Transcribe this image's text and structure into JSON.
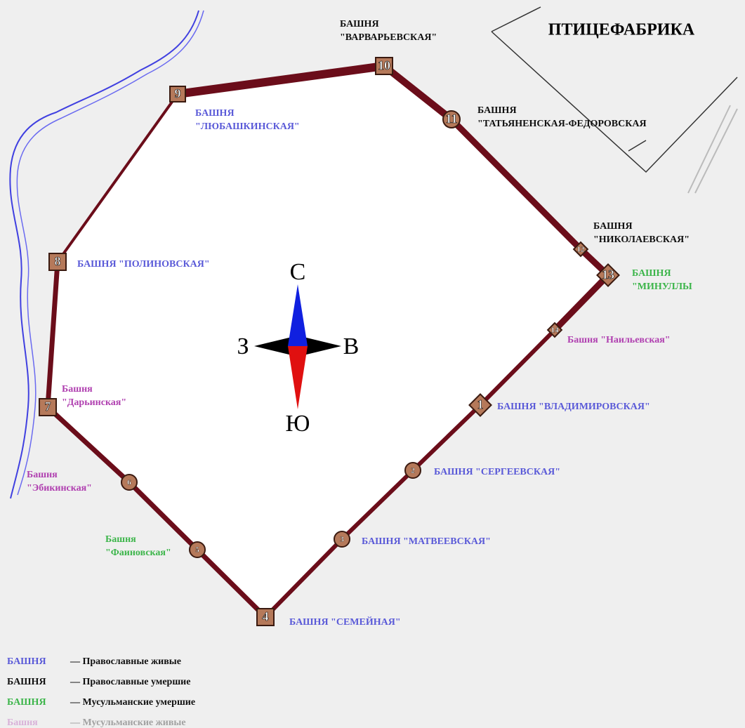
{
  "title": "ПТИЦЕФАБРИКА",
  "compass": {
    "north": "С",
    "south": "Ю",
    "west": "З",
    "east": "В"
  },
  "towers": [
    {
      "number": "1",
      "shape": "diamond",
      "color": "#5a5ad8",
      "label": [
        "БАШНЯ \"ВЛАДИМИРОВСКАЯ\""
      ]
    },
    {
      "number": "2",
      "shape": "circle",
      "color": "#5a5ad8",
      "label": [
        "БАШНЯ \"СЕРГЕЕВСКАЯ\""
      ]
    },
    {
      "number": "3",
      "shape": "circle",
      "color": "#5a5ad8",
      "label": [
        "БАШНЯ \"МАТВЕЕВСКАЯ\""
      ]
    },
    {
      "number": "4",
      "shape": "square",
      "color": "#5a5ad8",
      "label": [
        "БАШНЯ \"СЕМЕЙНАЯ\""
      ]
    },
    {
      "number": "5",
      "shape": "circle",
      "color": "#3cb54a",
      "label": [
        "Башня",
        "\"Фаиновская\""
      ]
    },
    {
      "number": "6",
      "shape": "circle",
      "color": "#b040b0",
      "label": [
        "Башня",
        "\"Эбикинская\""
      ]
    },
    {
      "number": "7",
      "shape": "square",
      "color": "#b040b0",
      "label": [
        "Башня",
        "\"Дарьинская\""
      ]
    },
    {
      "number": "8",
      "shape": "square",
      "color": "#5a5ad8",
      "label": [
        "БАШНЯ \"ПОЛИНОВСКАЯ\""
      ]
    },
    {
      "number": "9",
      "shape": "square",
      "color": "#5a5ad8",
      "label": [
        "БАШНЯ",
        "\"ЛЮБАШКИНСКАЯ\""
      ]
    },
    {
      "number": "10",
      "shape": "square",
      "color": "#111111",
      "label": [
        "БАШНЯ",
        "\"ВАРВАРЬЕВСКАЯ\""
      ]
    },
    {
      "number": "11",
      "shape": "circle",
      "color": "#111111",
      "label": [
        "БАШНЯ",
        "\"ТАТЬЯНЕНСКАЯ-ФЕДОРОВСКАЯ"
      ]
    },
    {
      "number": "12",
      "shape": "diamond",
      "color": "#111111",
      "label": [
        "БАШНЯ",
        "\"НИКОЛАЕВСКАЯ\""
      ]
    },
    {
      "number": "13",
      "shape": "diamond",
      "color": "#3cb54a",
      "label": [
        "БАШНЯ",
        "\"МИНУЛЛЫ"
      ]
    },
    {
      "number": "14",
      "shape": "diamond",
      "color": "#b040b0",
      "label": [
        "Башня \"Наильевская\""
      ]
    }
  ],
  "legend": [
    {
      "key": "БАШНЯ",
      "text": "— Православные живые",
      "color": "#5a5ad8"
    },
    {
      "key": "БАШНЯ",
      "text": "— Православные умершие",
      "color": "#111111"
    },
    {
      "key": "БАШНЯ",
      "text": "— Мусульманские умершие",
      "color": "#3cb54a"
    },
    {
      "key": "Башня",
      "text": "— Мусульманские живые",
      "color": "#b040b0"
    }
  ]
}
